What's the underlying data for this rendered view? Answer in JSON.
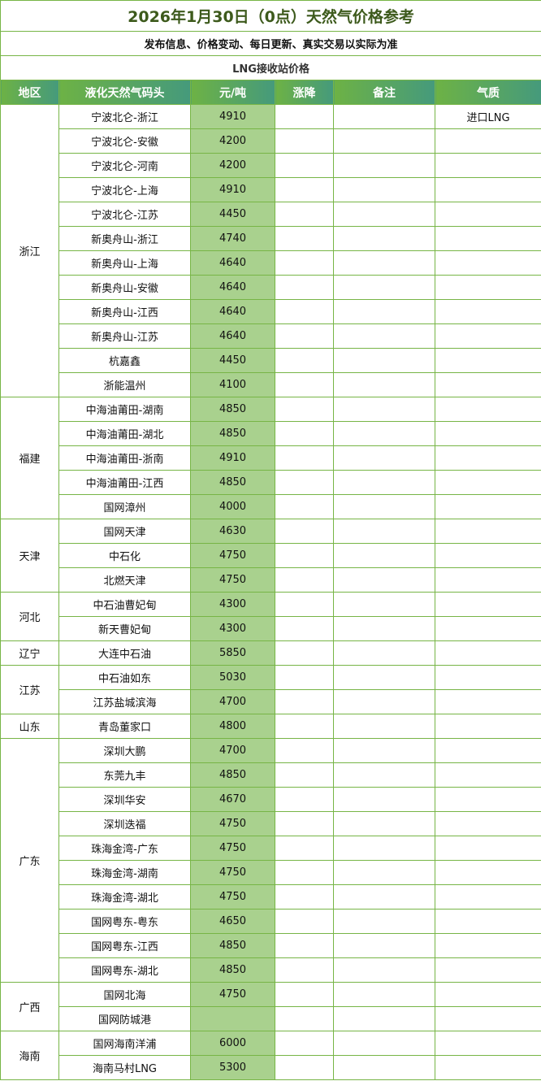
{
  "title": "2026年1月30日（0点）天然气价格参考",
  "subtitle": "发布信息、价格变动、每日更新、真实交易以实际为准",
  "section": "LNG接收站价格",
  "headers": [
    "地区",
    "液化天然气码头",
    "元/吨",
    "涨降",
    "备注",
    "气质"
  ],
  "colors": {
    "border": "#77b546",
    "price_bg": "#a9d18e",
    "header_start": "#6db245",
    "header_end": "#459a7c",
    "title": "#3d5a1c"
  },
  "regions": [
    {
      "name": "浙江",
      "rows": [
        {
          "terminal": "宁波北仑-浙江",
          "price": "4910",
          "change": "",
          "note": "",
          "quality": "进口LNG"
        },
        {
          "terminal": "宁波北仑-安徽",
          "price": "4200",
          "change": "",
          "note": "",
          "quality": ""
        },
        {
          "terminal": "宁波北仑-河南",
          "price": "4200",
          "change": "",
          "note": "",
          "quality": ""
        },
        {
          "terminal": "宁波北仑-上海",
          "price": "4910",
          "change": "",
          "note": "",
          "quality": ""
        },
        {
          "terminal": "宁波北仑-江苏",
          "price": "4450",
          "change": "",
          "note": "",
          "quality": ""
        },
        {
          "terminal": "新奥舟山-浙江",
          "price": "4740",
          "change": "",
          "note": "",
          "quality": ""
        },
        {
          "terminal": "新奥舟山-上海",
          "price": "4640",
          "change": "",
          "note": "",
          "quality": ""
        },
        {
          "terminal": "新奥舟山-安徽",
          "price": "4640",
          "change": "",
          "note": "",
          "quality": ""
        },
        {
          "terminal": "新奥舟山-江西",
          "price": "4640",
          "change": "",
          "note": "",
          "quality": ""
        },
        {
          "terminal": "新奥舟山-江苏",
          "price": "4640",
          "change": "",
          "note": "",
          "quality": ""
        },
        {
          "terminal": "杭嘉鑫",
          "price": "4450",
          "change": "",
          "note": "",
          "quality": ""
        },
        {
          "terminal": "浙能温州",
          "price": "4100",
          "change": "",
          "note": "",
          "quality": ""
        }
      ]
    },
    {
      "name": "福建",
      "rows": [
        {
          "terminal": "中海油莆田-湖南",
          "price": "4850",
          "change": "",
          "note": "",
          "quality": ""
        },
        {
          "terminal": "中海油莆田-湖北",
          "price": "4850",
          "change": "",
          "note": "",
          "quality": ""
        },
        {
          "terminal": "中海油莆田-浙南",
          "price": "4910",
          "change": "",
          "note": "",
          "quality": ""
        },
        {
          "terminal": "中海油莆田-江西",
          "price": "4850",
          "change": "",
          "note": "",
          "quality": ""
        },
        {
          "terminal": "国网漳州",
          "price": "4000",
          "change": "",
          "note": "",
          "quality": ""
        }
      ]
    },
    {
      "name": "天津",
      "rows": [
        {
          "terminal": "国网天津",
          "price": "4630",
          "change": "",
          "note": "",
          "quality": ""
        },
        {
          "terminal": "中石化",
          "price": "4750",
          "change": "",
          "note": "",
          "quality": ""
        },
        {
          "terminal": "北燃天津",
          "price": "4750",
          "change": "",
          "note": "",
          "quality": ""
        }
      ]
    },
    {
      "name": "河北",
      "rows": [
        {
          "terminal": "中石油曹妃甸",
          "price": "4300",
          "change": "",
          "note": "",
          "quality": ""
        },
        {
          "terminal": "新天曹妃甸",
          "price": "4300",
          "change": "",
          "note": "",
          "quality": ""
        }
      ]
    },
    {
      "name": "辽宁",
      "rows": [
        {
          "terminal": "大连中石油",
          "price": "5850",
          "change": "",
          "note": "",
          "quality": ""
        }
      ]
    },
    {
      "name": "江苏",
      "rows": [
        {
          "terminal": "中石油如东",
          "price": "5030",
          "change": "",
          "note": "",
          "quality": ""
        },
        {
          "terminal": "江苏盐城滨海",
          "price": "4700",
          "change": "",
          "note": "",
          "quality": ""
        }
      ]
    },
    {
      "name": "山东",
      "rows": [
        {
          "terminal": "青岛董家口",
          "price": "4800",
          "change": "",
          "note": "",
          "quality": ""
        }
      ]
    },
    {
      "name": "广东",
      "rows": [
        {
          "terminal": "深圳大鹏",
          "price": "4700",
          "change": "",
          "note": "",
          "quality": ""
        },
        {
          "terminal": "东莞九丰",
          "price": "4850",
          "change": "",
          "note": "",
          "quality": ""
        },
        {
          "terminal": "深圳华安",
          "price": "4670",
          "change": "",
          "note": "",
          "quality": ""
        },
        {
          "terminal": "深圳迭福",
          "price": "4750",
          "change": "",
          "note": "",
          "quality": ""
        },
        {
          "terminal": "珠海金湾-广东",
          "price": "4750",
          "change": "",
          "note": "",
          "quality": ""
        },
        {
          "terminal": "珠海金湾-湖南",
          "price": "4750",
          "change": "",
          "note": "",
          "quality": ""
        },
        {
          "terminal": "珠海金湾-湖北",
          "price": "4750",
          "change": "",
          "note": "",
          "quality": ""
        },
        {
          "terminal": "国网粤东-粤东",
          "price": "4650",
          "change": "",
          "note": "",
          "quality": ""
        },
        {
          "terminal": "国网粤东-江西",
          "price": "4850",
          "change": "",
          "note": "",
          "quality": ""
        },
        {
          "terminal": "国网粤东-湖北",
          "price": "4850",
          "change": "",
          "note": "",
          "quality": ""
        }
      ]
    },
    {
      "name": "广西",
      "rows": [
        {
          "terminal": "国网北海",
          "price": "4750",
          "change": "",
          "note": "",
          "quality": ""
        },
        {
          "terminal": "国网防城港",
          "price": "",
          "change": "",
          "note": "",
          "quality": ""
        }
      ]
    },
    {
      "name": "海南",
      "rows": [
        {
          "terminal": "国网海南洋浦",
          "price": "6000",
          "change": "",
          "note": "",
          "quality": ""
        },
        {
          "terminal": "海南马村LNG",
          "price": "5300",
          "change": "",
          "note": "",
          "quality": ""
        }
      ]
    }
  ]
}
